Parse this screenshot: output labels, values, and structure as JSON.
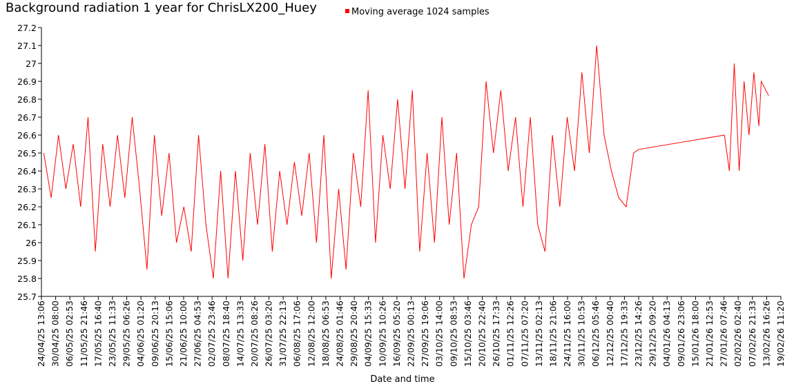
{
  "chart_data": {
    "type": "line",
    "title": "Background radiation 1 year for ChrisLX200_Huey",
    "x_label": "Date and time",
    "legend": "top",
    "ylim": [
      25.7,
      27.2
    ],
    "yticks": [
      25.7,
      25.8,
      25.9,
      26,
      26.1,
      26.2,
      26.3,
      26.4,
      26.5,
      26.6,
      26.7,
      26.8,
      26.9,
      27,
      27.1,
      27.2
    ],
    "xlim": [
      "24/04/25 13:06",
      "19/02/26 11:20"
    ],
    "xticks": [
      "24/04/25 13:06",
      "30/04/25 08:00",
      "06/05/25 02:53",
      "11/05/25 21:46",
      "17/05/25 16:40",
      "23/05/25 11:33",
      "29/05/25 06:26",
      "04/06/25 01:20",
      "09/06/25 20:13",
      "15/06/25 15:06",
      "21/06/25 10:00",
      "27/06/25 04:53",
      "02/07/25 23:46",
      "08/07/25 18:40",
      "14/07/25 13:33",
      "20/07/25 08:26",
      "26/07/25 03:20",
      "31/07/25 22:13",
      "06/08/25 17:06",
      "12/08/25 12:00",
      "18/08/25 06:53",
      "24/08/25 01:46",
      "29/08/25 20:40",
      "04/09/25 15:33",
      "10/09/25 10:26",
      "16/09/25 05:20",
      "22/09/25 00:13",
      "27/09/25 19:06",
      "03/10/25 14:00",
      "09/10/25 08:53",
      "15/10/25 03:46",
      "20/10/25 22:40",
      "26/10/25 17:33",
      "01/11/25 12:26",
      "07/11/25 07:20",
      "13/11/25 02:13",
      "18/11/25 21:06",
      "24/11/25 16:00",
      "30/11/25 10:53",
      "06/12/25 05:46",
      "12/12/25 00:40",
      "17/12/25 19:33",
      "23/12/25 14:26",
      "29/12/25 09:20",
      "04/01/26 04:13",
      "09/01/26 23:06",
      "15/01/26 18:00",
      "21/01/26 12:53",
      "27/01/26 07:46",
      "02/02/26 02:40",
      "07/02/26 21:33",
      "13/02/26 16:26",
      "19/02/26 11:20"
    ],
    "series": [
      {
        "name": "Moving average 1024 samples",
        "color": "#ff0000",
        "x": [
          "25/04/25 12:00",
          "28/04/25 12:00",
          "01/05/25 12:00",
          "04/05/25 12:00",
          "07/05/25 12:00",
          "10/05/25 12:00",
          "13/05/25 12:00",
          "16/05/25 12:00",
          "19/05/25 12:00",
          "22/05/25 12:00",
          "25/05/25 12:00",
          "28/05/25 12:00",
          "31/05/25 12:00",
          "03/06/25 12:00",
          "06/06/25 12:00",
          "09/06/25 12:00",
          "12/06/25 12:00",
          "15/06/25 12:00",
          "18/06/25 12:00",
          "21/06/25 12:00",
          "24/06/25 12:00",
          "27/06/25 12:00",
          "30/06/25 12:00",
          "03/07/25 12:00",
          "06/07/25 12:00",
          "09/07/25 12:00",
          "12/07/25 12:00",
          "15/07/25 12:00",
          "18/07/25 12:00",
          "21/07/25 12:00",
          "24/07/25 12:00",
          "27/07/25 12:00",
          "30/07/25 12:00",
          "02/08/25 12:00",
          "05/08/25 12:00",
          "08/08/25 12:00",
          "11/08/25 12:00",
          "14/08/25 12:00",
          "17/08/25 12:00",
          "20/08/25 12:00",
          "23/08/25 12:00",
          "26/08/25 12:00",
          "29/08/25 12:00",
          "01/09/25 12:00",
          "04/09/25 12:00",
          "07/09/25 12:00",
          "10/09/25 12:00",
          "13/09/25 12:00",
          "16/09/25 12:00",
          "19/09/25 12:00",
          "22/09/25 12:00",
          "25/09/25 12:00",
          "28/09/25 12:00",
          "01/10/25 12:00",
          "04/10/25 12:00",
          "07/10/25 12:00",
          "10/10/25 12:00",
          "13/10/25 12:00",
          "16/10/25 12:00",
          "19/10/25 12:00",
          "22/10/25 12:00",
          "25/10/25 12:00",
          "28/10/25 12:00",
          "31/10/25 12:00",
          "03/11/25 12:00",
          "06/11/25 12:00",
          "09/11/25 12:00",
          "12/11/25 12:00",
          "15/11/25 12:00",
          "18/11/25 12:00",
          "21/11/25 12:00",
          "24/11/25 12:00",
          "27/11/25 12:00",
          "30/11/25 12:00",
          "03/12/25 12:00",
          "06/12/25 12:00",
          "09/12/25 12:00",
          "12/12/25 12:00",
          "15/12/25 12:00",
          "18/12/25 12:00",
          "21/12/25 12:00",
          "23/12/25 14:26",
          "27/01/26 12:00",
          "29/01/26 12:00",
          "31/01/26 12:00",
          "02/02/26 12:00",
          "04/02/26 12:00",
          "06/02/26 12:00",
          "08/02/26 12:00",
          "10/02/26 12:00",
          "11/02/26 12:00",
          "14/02/26 12:00"
        ],
        "values": [
          26.5,
          26.25,
          26.6,
          26.3,
          26.55,
          26.2,
          26.7,
          25.95,
          26.55,
          26.2,
          26.6,
          26.25,
          26.7,
          26.3,
          25.85,
          26.6,
          26.15,
          26.5,
          26.0,
          26.2,
          25.95,
          26.6,
          26.1,
          25.8,
          26.4,
          25.8,
          26.4,
          25.9,
          26.5,
          26.1,
          26.55,
          25.95,
          26.4,
          26.1,
          26.45,
          26.15,
          26.5,
          26.0,
          26.6,
          25.8,
          26.3,
          25.85,
          26.5,
          26.2,
          26.85,
          26.0,
          26.6,
          26.3,
          26.8,
          26.3,
          26.85,
          25.95,
          26.5,
          26.0,
          26.7,
          26.1,
          26.5,
          25.8,
          26.1,
          26.2,
          26.9,
          26.5,
          26.85,
          26.4,
          26.7,
          26.2,
          26.7,
          26.1,
          25.95,
          26.6,
          26.2,
          26.7,
          26.4,
          26.95,
          26.5,
          27.1,
          26.6,
          26.4,
          26.25,
          26.2,
          26.5,
          26.52,
          26.6,
          26.4,
          27.0,
          26.4,
          26.9,
          26.6,
          26.95,
          26.65,
          26.9,
          26.82
        ]
      }
    ]
  }
}
